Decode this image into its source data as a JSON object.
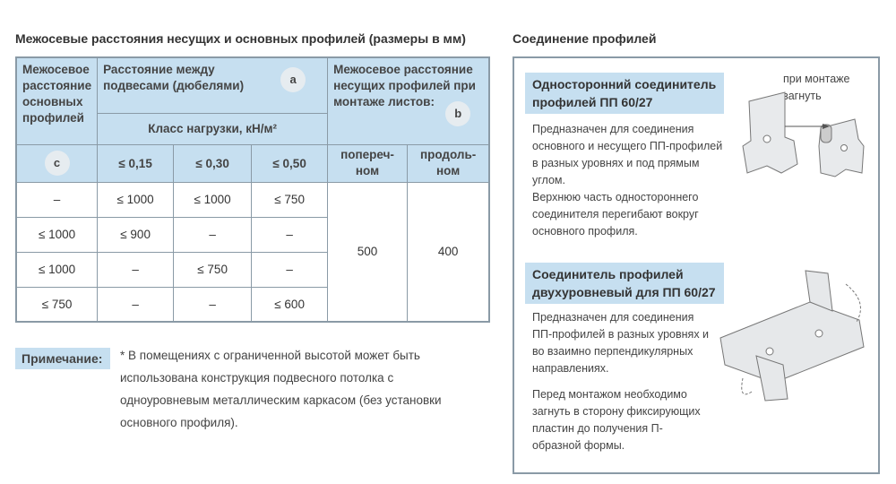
{
  "left_title": "Межосевые расстояния несущих и основных профилей (размеры в мм)",
  "right_title": "Соединение профилей",
  "table": {
    "h_main": "Межосевое расстояние основных профилей",
    "h_hangers": "Расстояние между подвесами (дюбелями)",
    "h_carrier": "Межосевое расстояние несущих профилей при монтаже листов:",
    "h_class": "Класс нагрузки, кН/м²",
    "badge_a": "a",
    "badge_b": "b",
    "badge_c": "c",
    "loads": [
      "≤ 0,15",
      "≤ 0,30",
      "≤ 0,50"
    ],
    "orient": [
      "попереч-ном",
      "продоль-ном"
    ],
    "rows": [
      [
        "–",
        "≤ 1000",
        "≤ 1000",
        "≤ 750"
      ],
      [
        "≤ 1000",
        "≤ 900",
        "–",
        "–"
      ],
      [
        "≤ 1000",
        "–",
        "≤ 750",
        "–"
      ],
      [
        "≤ 750",
        "–",
        "–",
        "≤ 600"
      ]
    ],
    "cross": "500",
    "along": "400"
  },
  "note": {
    "label": "Примечание:",
    "text": "* В помещениях с ограниченной высотой может быть использована конструкция подвесного потолка с одноуровневым металлическим каркасом (без установки основного профиля)."
  },
  "conn1": {
    "title": "Односторонний соединитель профилей  ПП 60/27",
    "p1": "Предназначен для соединения основного и несущего ПП-профилей в разных уровнях и под прямым углом.",
    "p2": "Верхнюю часть одностороннего соединителя перегибают вокруг основного профиля.",
    "caption": "при монтаже загнуть"
  },
  "conn2": {
    "title": "Соединитель профилей двухуровневый для ПП 60/27",
    "p1": "Предназначен для соединения ПП-профилей в разных уровнях и во взаимно перпендикулярных направлениях.",
    "p2": "Перед монтажом необходимо загнуть в сторону фиксирующих пластин до получения П-образной формы."
  }
}
